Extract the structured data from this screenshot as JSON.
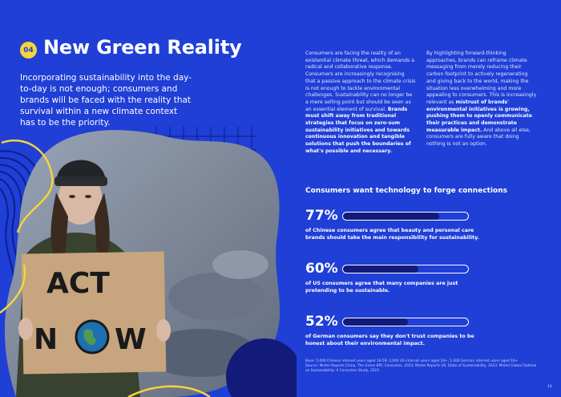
{
  "header": {
    "badge": "04",
    "title": "New Green Reality",
    "intro": "Incorporating sustainability into the day-to-day is not enough; consumers and brands will be faced with the reality that survival within a new climate context has to be the priority."
  },
  "photo": {
    "sign_line1": "ACT",
    "sign_line2": "N",
    "sign_line3": "W"
  },
  "body": {
    "col1_a": "Consumers are facing the reality of an existential climate threat, which demands a radical and collaborative response. Consumers are increasingly recognising that a passive approach to the climate crisis is not enough to tackle environmental challenges. Sustainability can no longer be a mere selling point but should be seen as an essential element of survival. ",
    "col1_b": "Brands must shift away from traditional strategies that focus on zero-sum sustainability initiatives and towards continuous innovation and tangible solutions that push the boundaries of what's possible and necessary.",
    "col2_a": "By highlighting forward-thinking approaches, brands can reframe climate messaging from merely reducing their carbon footprint to actively regenerating and giving back to the world, making the situation less overwhelming and more appealing to consumers. This is increasingly relevant as ",
    "col2_b": "mistrust of brands' environmental initiatives is growing, pushing them to openly communicate their practices and demonstrate measurable impact.",
    "col2_c": " And above all else, consumers are fully aware that doing nothing is not an option."
  },
  "stats": {
    "heading": "Consumers want technology to forge connections",
    "items": [
      {
        "pct": "77%",
        "value": 77,
        "desc": "of Chinese consumers agree that beauty and personal care brands should take the main responsibility for sustainability."
      },
      {
        "pct": "60%",
        "value": 60,
        "desc": "of US consumers agree that many companies are just pretending to be sustainable."
      },
      {
        "pct": "52%",
        "value": 52,
        "desc": "of German consumers say they don't trust companies to be honest about their environmental impact."
      }
    ]
  },
  "source": {
    "line1": "Base: 5,000 Chinese internet users aged 18-59; 2,000 US internet users aged 18+; 1,000 German internet users aged 16+",
    "line2": "Source: Mintel Reports China, The Green BPC Consumer, 2023; Mintel Reports US, State of Sustainability, 2023; Mintel Global Outlook on Sustainability: A Consumer Study, 2023"
  },
  "page_number": "19",
  "colors": {
    "background": "#1f3fd6",
    "badge": "#f6d43a",
    "bar_fill": "#121b7a",
    "accent_yellow": "#f6d43a"
  }
}
